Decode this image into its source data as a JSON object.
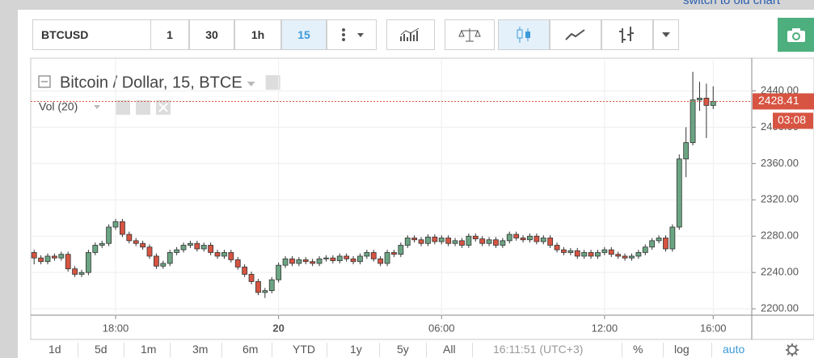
{
  "link": "switch to old chart",
  "toolbar": {
    "symbol": "BTCUSD",
    "intervals": [
      "1",
      "30",
      "1h",
      "15"
    ],
    "active_interval": 3
  },
  "chart_data": {
    "type": "candlestick",
    "title": "Bitcoin / Dollar, 15, BTCE",
    "indicator": "Vol (20)",
    "up_color": "#6ba583",
    "down_color": "#d75442",
    "x": [
      -9,
      -8.75,
      -8.5,
      -8.25,
      -8,
      -7.75,
      -7.5,
      -7.25,
      -7,
      -6.75,
      -6.5,
      -6.25,
      -6,
      -5.75,
      -5.5,
      -5.25,
      -5,
      -4.75,
      -4.5,
      -4.25,
      -4,
      -3.75,
      -3.5,
      -3.25,
      -3,
      -2.75,
      -2.5,
      -2.25,
      -2,
      -1.75,
      -1.5,
      -1.25,
      -1,
      -0.75,
      -0.5,
      -0.25,
      0,
      0.25,
      0.5,
      0.75,
      1,
      1.25,
      1.5,
      1.75,
      2,
      2.25,
      2.5,
      2.75,
      3,
      3.25,
      3.5,
      3.75,
      4,
      4.25,
      4.5,
      4.75,
      5,
      5.25,
      5.5,
      5.75,
      6,
      6.25,
      6.5,
      6.75,
      7,
      7.25,
      7.5,
      7.75,
      8,
      8.25,
      8.5,
      8.75,
      9,
      9.25,
      9.5,
      9.75,
      10,
      10.25,
      10.5,
      10.75,
      11,
      11.25,
      11.5,
      11.75,
      12,
      12.25,
      12.5,
      12.75,
      13,
      13.25,
      13.5,
      13.75,
      14,
      14.25,
      14.5,
      14.75,
      15,
      15.25,
      15.5,
      15.75,
      16
    ],
    "open": [
      2262,
      2256,
      2252,
      2258,
      2256,
      2260,
      2244,
      2238,
      2240,
      2262,
      2270,
      2272,
      2290,
      2296,
      2282,
      2275,
      2272,
      2268,
      2258,
      2247,
      2250,
      2262,
      2265,
      2270,
      2272,
      2266,
      2270,
      2262,
      2258,
      2262,
      2254,
      2246,
      2238,
      2230,
      2218,
      2220,
      2232,
      2248,
      2255,
      2250,
      2254,
      2252,
      2250,
      2255,
      2256,
      2253,
      2258,
      2255,
      2252,
      2258,
      2262,
      2255,
      2250,
      2262,
      2260,
      2270,
      2278,
      2276,
      2272,
      2279,
      2274,
      2278,
      2272,
      2275,
      2270,
      2280,
      2277,
      2272,
      2276,
      2270,
      2275,
      2282,
      2278,
      2276,
      2280,
      2274,
      2278,
      2270,
      2265,
      2262,
      2264,
      2258,
      2262,
      2258,
      2262,
      2265,
      2260,
      2258,
      2256,
      2258,
      2262,
      2268,
      2275,
      2278,
      2266,
      2290,
      2365,
      2383,
      2430,
      2432,
      2424
    ],
    "high": [
      2265,
      2259,
      2261,
      2261,
      2263,
      2263,
      2247,
      2243,
      2265,
      2273,
      2275,
      2293,
      2299,
      2299,
      2285,
      2278,
      2275,
      2271,
      2261,
      2253,
      2265,
      2268,
      2273,
      2275,
      2275,
      2273,
      2273,
      2265,
      2265,
      2265,
      2257,
      2249,
      2241,
      2233,
      2223,
      2235,
      2251,
      2258,
      2258,
      2257,
      2257,
      2255,
      2258,
      2259,
      2259,
      2261,
      2261,
      2258,
      2261,
      2265,
      2265,
      2258,
      2265,
      2265,
      2273,
      2281,
      2281,
      2279,
      2282,
      2282,
      2281,
      2281,
      2278,
      2278,
      2283,
      2283,
      2280,
      2279,
      2279,
      2278,
      2285,
      2285,
      2281,
      2283,
      2283,
      2281,
      2281,
      2273,
      2268,
      2267,
      2267,
      2265,
      2265,
      2265,
      2268,
      2268,
      2263,
      2261,
      2261,
      2265,
      2271,
      2278,
      2281,
      2281,
      2293,
      2370,
      2400,
      2461,
      2450,
      2448,
      2445
    ],
    "low": [
      2249,
      2249,
      2249,
      2253,
      2253,
      2241,
      2235,
      2235,
      2237,
      2259,
      2267,
      2269,
      2287,
      2279,
      2272,
      2269,
      2265,
      2255,
      2244,
      2244,
      2247,
      2259,
      2262,
      2267,
      2263,
      2263,
      2259,
      2255,
      2255,
      2251,
      2243,
      2235,
      2227,
      2215,
      2212,
      2217,
      2229,
      2245,
      2247,
      2247,
      2249,
      2247,
      2247,
      2252,
      2250,
      2250,
      2252,
      2249,
      2249,
      2255,
      2252,
      2247,
      2247,
      2257,
      2257,
      2267,
      2273,
      2269,
      2269,
      2271,
      2271,
      2269,
      2269,
      2267,
      2267,
      2274,
      2269,
      2269,
      2267,
      2267,
      2272,
      2275,
      2273,
      2273,
      2271,
      2271,
      2267,
      2262,
      2259,
      2259,
      2255,
      2255,
      2255,
      2255,
      2259,
      2257,
      2255,
      2253,
      2253,
      2255,
      2259,
      2265,
      2272,
      2263,
      2263,
      2287,
      2345,
      2380,
      2418,
      2388,
      2420
    ],
    "close": [
      2256,
      2252,
      2258,
      2256,
      2260,
      2244,
      2238,
      2240,
      2262,
      2270,
      2272,
      2290,
      2296,
      2282,
      2275,
      2272,
      2268,
      2258,
      2247,
      2250,
      2262,
      2265,
      2270,
      2272,
      2266,
      2270,
      2262,
      2258,
      2262,
      2254,
      2246,
      2238,
      2230,
      2218,
      2220,
      2232,
      2248,
      2255,
      2250,
      2254,
      2252,
      2250,
      2255,
      2256,
      2253,
      2258,
      2255,
      2252,
      2258,
      2262,
      2255,
      2250,
      2262,
      2260,
      2270,
      2278,
      2276,
      2272,
      2279,
      2274,
      2278,
      2272,
      2275,
      2270,
      2280,
      2277,
      2272,
      2276,
      2270,
      2275,
      2282,
      2278,
      2276,
      2280,
      2274,
      2278,
      2270,
      2265,
      2262,
      2264,
      2258,
      2262,
      2258,
      2262,
      2265,
      2260,
      2258,
      2256,
      2258,
      2262,
      2268,
      2275,
      2278,
      2266,
      2290,
      2365,
      2383,
      2430,
      2432,
      2424,
      2428.41
    ],
    "xlim": [
      -9.125,
      17.42
    ],
    "xticks": [
      {
        "value": -6,
        "label": "18:00"
      },
      {
        "value": 0,
        "label": "20"
      },
      {
        "value": 6,
        "label": "06:00"
      },
      {
        "value": 12,
        "label": "12:00"
      },
      {
        "value": 16,
        "label": "16:00"
      }
    ],
    "ylim": [
      2193,
      2476
    ],
    "yticks": [
      {
        "value": 2200,
        "label": "2200.00"
      },
      {
        "value": 2240,
        "label": "2240.00"
      },
      {
        "value": 2280,
        "label": "2280.00"
      },
      {
        "value": 2320,
        "label": "2320.00"
      },
      {
        "value": 2360,
        "label": "2360.00"
      },
      {
        "value": 2400,
        "label": "2400.00"
      },
      {
        "value": 2440,
        "label": "2440.00"
      }
    ],
    "grid": true,
    "countdown": "03:08"
  },
  "bottom_bar": {
    "ranges": [
      "1d",
      "5d",
      "1m",
      "3m",
      "6m",
      "YTD",
      "1y",
      "5y",
      "All"
    ],
    "clock": "16:11:51 (UTC+3)",
    "options": [
      "%",
      "log",
      "auto"
    ]
  }
}
